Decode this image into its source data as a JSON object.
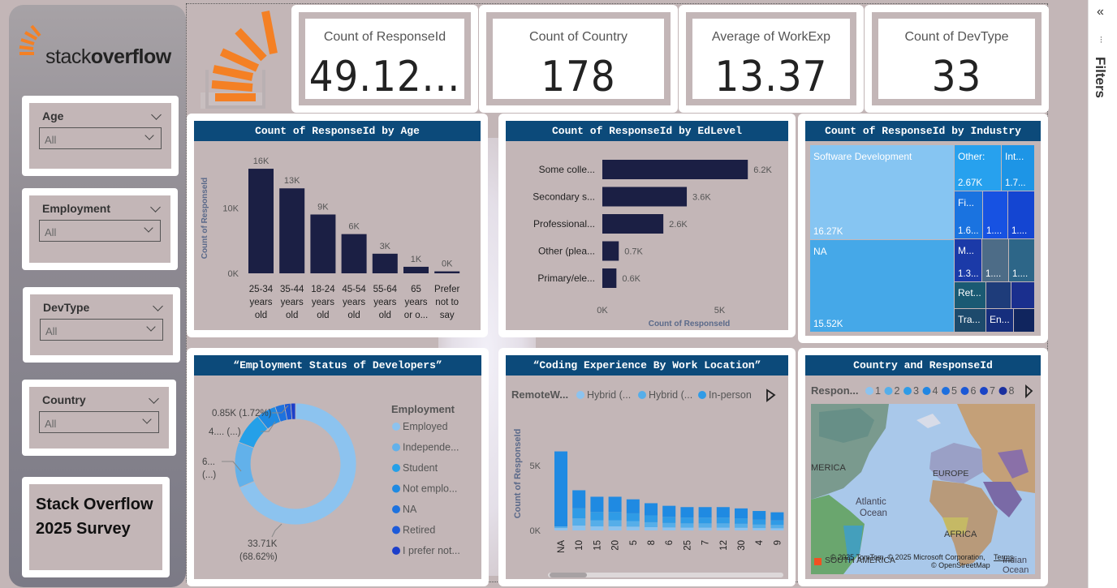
{
  "brand": {
    "logo_light": "stack",
    "logo_bold": "overflow"
  },
  "slicers": [
    {
      "label": "Age",
      "value": "All"
    },
    {
      "label": "Employment",
      "value": "All"
    },
    {
      "label": "DevType",
      "value": "All"
    },
    {
      "label": "Country",
      "value": "All"
    }
  ],
  "survey_title": "Stack Overflow 2025 Survey",
  "kpis": [
    {
      "title": "Count of ResponseId",
      "value": "49.12..."
    },
    {
      "title": "Count of Country",
      "value": "178"
    },
    {
      "title": "Average of WorkExp",
      "value": "13.37"
    },
    {
      "title": "Count of DevType",
      "value": "33"
    }
  ],
  "filters_pane": {
    "label": "Filters",
    "collapse_glyph": "«",
    "icon_glyph": "⫶"
  },
  "age_chart": {
    "title": "Count of ResponseId by Age",
    "ylabel": "Count of ResponseId",
    "yticks": [
      "0K",
      "10K"
    ],
    "chart_data": {
      "type": "bar",
      "categories": [
        [
          "25-34",
          "years",
          "old"
        ],
        [
          "35-44",
          "years",
          "old"
        ],
        [
          "18-24",
          "years",
          "old"
        ],
        [
          "45-54",
          "years",
          "old"
        ],
        [
          "55-64",
          "years",
          "old"
        ],
        [
          "65",
          "years",
          "or o..."
        ],
        [
          "Prefer",
          "not to",
          "say"
        ]
      ],
      "values": [
        16,
        13,
        9,
        6,
        3,
        1,
        0.3
      ],
      "data_labels": [
        "16K",
        "13K",
        "9K",
        "6K",
        "3K",
        "1K",
        "0K"
      ],
      "ylim": [
        0,
        17
      ],
      "color": "#1b1f44"
    }
  },
  "edlevel_chart": {
    "title": "Count of ResponseId by EdLevel",
    "xlabel": "Count of ResponseId",
    "xticks": [
      "0K",
      "5K"
    ],
    "chart_data": {
      "type": "bar",
      "orientation": "horizontal",
      "categories": [
        "Some colle...",
        "Secondary s...",
        "Professional...",
        "Other (plea...",
        "Primary/ele..."
      ],
      "values": [
        6.2,
        3.6,
        2.6,
        0.7,
        0.6
      ],
      "data_labels": [
        "6.2K",
        "3.6K",
        "2.6K",
        "0.7K",
        "0.6K"
      ],
      "xlim": [
        0,
        7.3
      ],
      "color": "#1b1f44"
    }
  },
  "industry_chart": {
    "title": "Count of ResponseId by Industry",
    "chart_data": {
      "type": "treemap",
      "tiles": [
        {
          "label": "Software Development",
          "value": "16.27K",
          "color": "#86c5f2"
        },
        {
          "label": "NA",
          "value": "15.52K",
          "color": "#45a8e8"
        },
        {
          "label": "Other:",
          "value": "2.67K",
          "color": "#27a1ee"
        },
        {
          "label": "Int...",
          "value": "1.7...",
          "color": "#1d95e6"
        },
        {
          "label": "Fi...",
          "value": "1.6...",
          "color": "#1a73e0"
        },
        {
          "label": "",
          "value": "1....",
          "color": "#1752e2"
        },
        {
          "label": "",
          "value": "1....",
          "color": "#1445d2"
        },
        {
          "label": "M...",
          "value": "1.3...",
          "color": "#1b3aa8"
        },
        {
          "label": "",
          "value": "1....",
          "color": "#4d6c87"
        },
        {
          "label": "",
          "value": "1....",
          "color": "#2d6688"
        },
        {
          "label": "Ret...",
          "value": "",
          "color": "#1a5a73"
        },
        {
          "label": "",
          "value": "",
          "color": "#1e3c7a"
        },
        {
          "label": "",
          "value": "",
          "color": "#1a2f8e"
        },
        {
          "label": "Tra...",
          "value": "",
          "color": "#1d4a6c"
        },
        {
          "label": "En...",
          "value": "",
          "color": "#162e7d"
        },
        {
          "label": "",
          "value": "",
          "color": "#10255e"
        }
      ]
    }
  },
  "employment_chart": {
    "title": "“Employment Status of Developers”",
    "legend_title": "Employment",
    "chart_data": {
      "type": "pie",
      "donut": true,
      "slices": [
        {
          "name": "Employed",
          "value": 68.62,
          "color": "#8cc3ef"
        },
        {
          "name": "Independe...",
          "value": 12.2,
          "color": "#62b1ea"
        },
        {
          "name": "Student",
          "value": 8.5,
          "color": "#25a0e8"
        },
        {
          "name": "Not emplo...",
          "value": 5.2,
          "color": "#1f8ae2"
        },
        {
          "name": "NA",
          "value": 2.5,
          "color": "#1d72de"
        },
        {
          "name": "Retired",
          "value": 1.72,
          "color": "#1c5ad9"
        },
        {
          "name": "I prefer not...",
          "value": 1.24,
          "color": "#1c3fca"
        }
      ],
      "annotations": [
        {
          "text": "0.85K (1.72%)"
        },
        {
          "text": "4.... (...)"
        },
        {
          "text": "6...",
          "text2": "(...)"
        },
        {
          "text": "33.71K",
          "text2": "(68.62%)"
        }
      ]
    }
  },
  "coding_chart": {
    "title": "“Coding Experience By Work Location”",
    "legend_title": "RemoteW...",
    "legend_items": [
      {
        "name": "Hybrid (...",
        "color": "#8cc3ef"
      },
      {
        "name": "Hybrid (...",
        "color": "#56aee9"
      },
      {
        "name": "In-person",
        "color": "#2f9be6"
      }
    ],
    "ylabel": "Count of ResponseId",
    "yticks": [
      "0K",
      "5K"
    ],
    "chart_data": {
      "type": "bar",
      "stacked": true,
      "categories": [
        "NA",
        "10",
        "15",
        "20",
        "5",
        "8",
        "6",
        "25",
        "7",
        "12",
        "30",
        "4",
        "9"
      ],
      "values": [
        6.1,
        3.1,
        2.6,
        2.6,
        2.4,
        2.1,
        1.9,
        1.8,
        1.8,
        1.8,
        1.7,
        1.5,
        1.4
      ],
      "ylim": [
        0,
        7.2
      ]
    }
  },
  "map_chart": {
    "title": "Country and ResponseId",
    "legend_title": "Respon...",
    "legend_items": [
      {
        "name": "1",
        "color": "#8cc3ef"
      },
      {
        "name": "2",
        "color": "#56aee9"
      },
      {
        "name": "3",
        "color": "#2f9be6"
      },
      {
        "name": "4",
        "color": "#2186e2"
      },
      {
        "name": "5",
        "color": "#1e6fde"
      },
      {
        "name": "6",
        "color": "#1b58d6"
      },
      {
        "name": "7",
        "color": "#1a44c6"
      },
      {
        "name": "8",
        "color": "#1a2f9e"
      }
    ],
    "labels": {
      "america": "MERICA",
      "europe": "EUROPE",
      "ocean1": "Atlantic",
      "ocean2": "Ocean",
      "africa": "AFRICA",
      "south": "SOUTH AMERICA",
      "indian1": "Indian",
      "indian2": "Ocean"
    },
    "attribution": "© 2025 TomTom, © 2025 Microsoft Corporation,",
    "attribution2": "© OpenStreetMap",
    "terms": "Terms"
  }
}
